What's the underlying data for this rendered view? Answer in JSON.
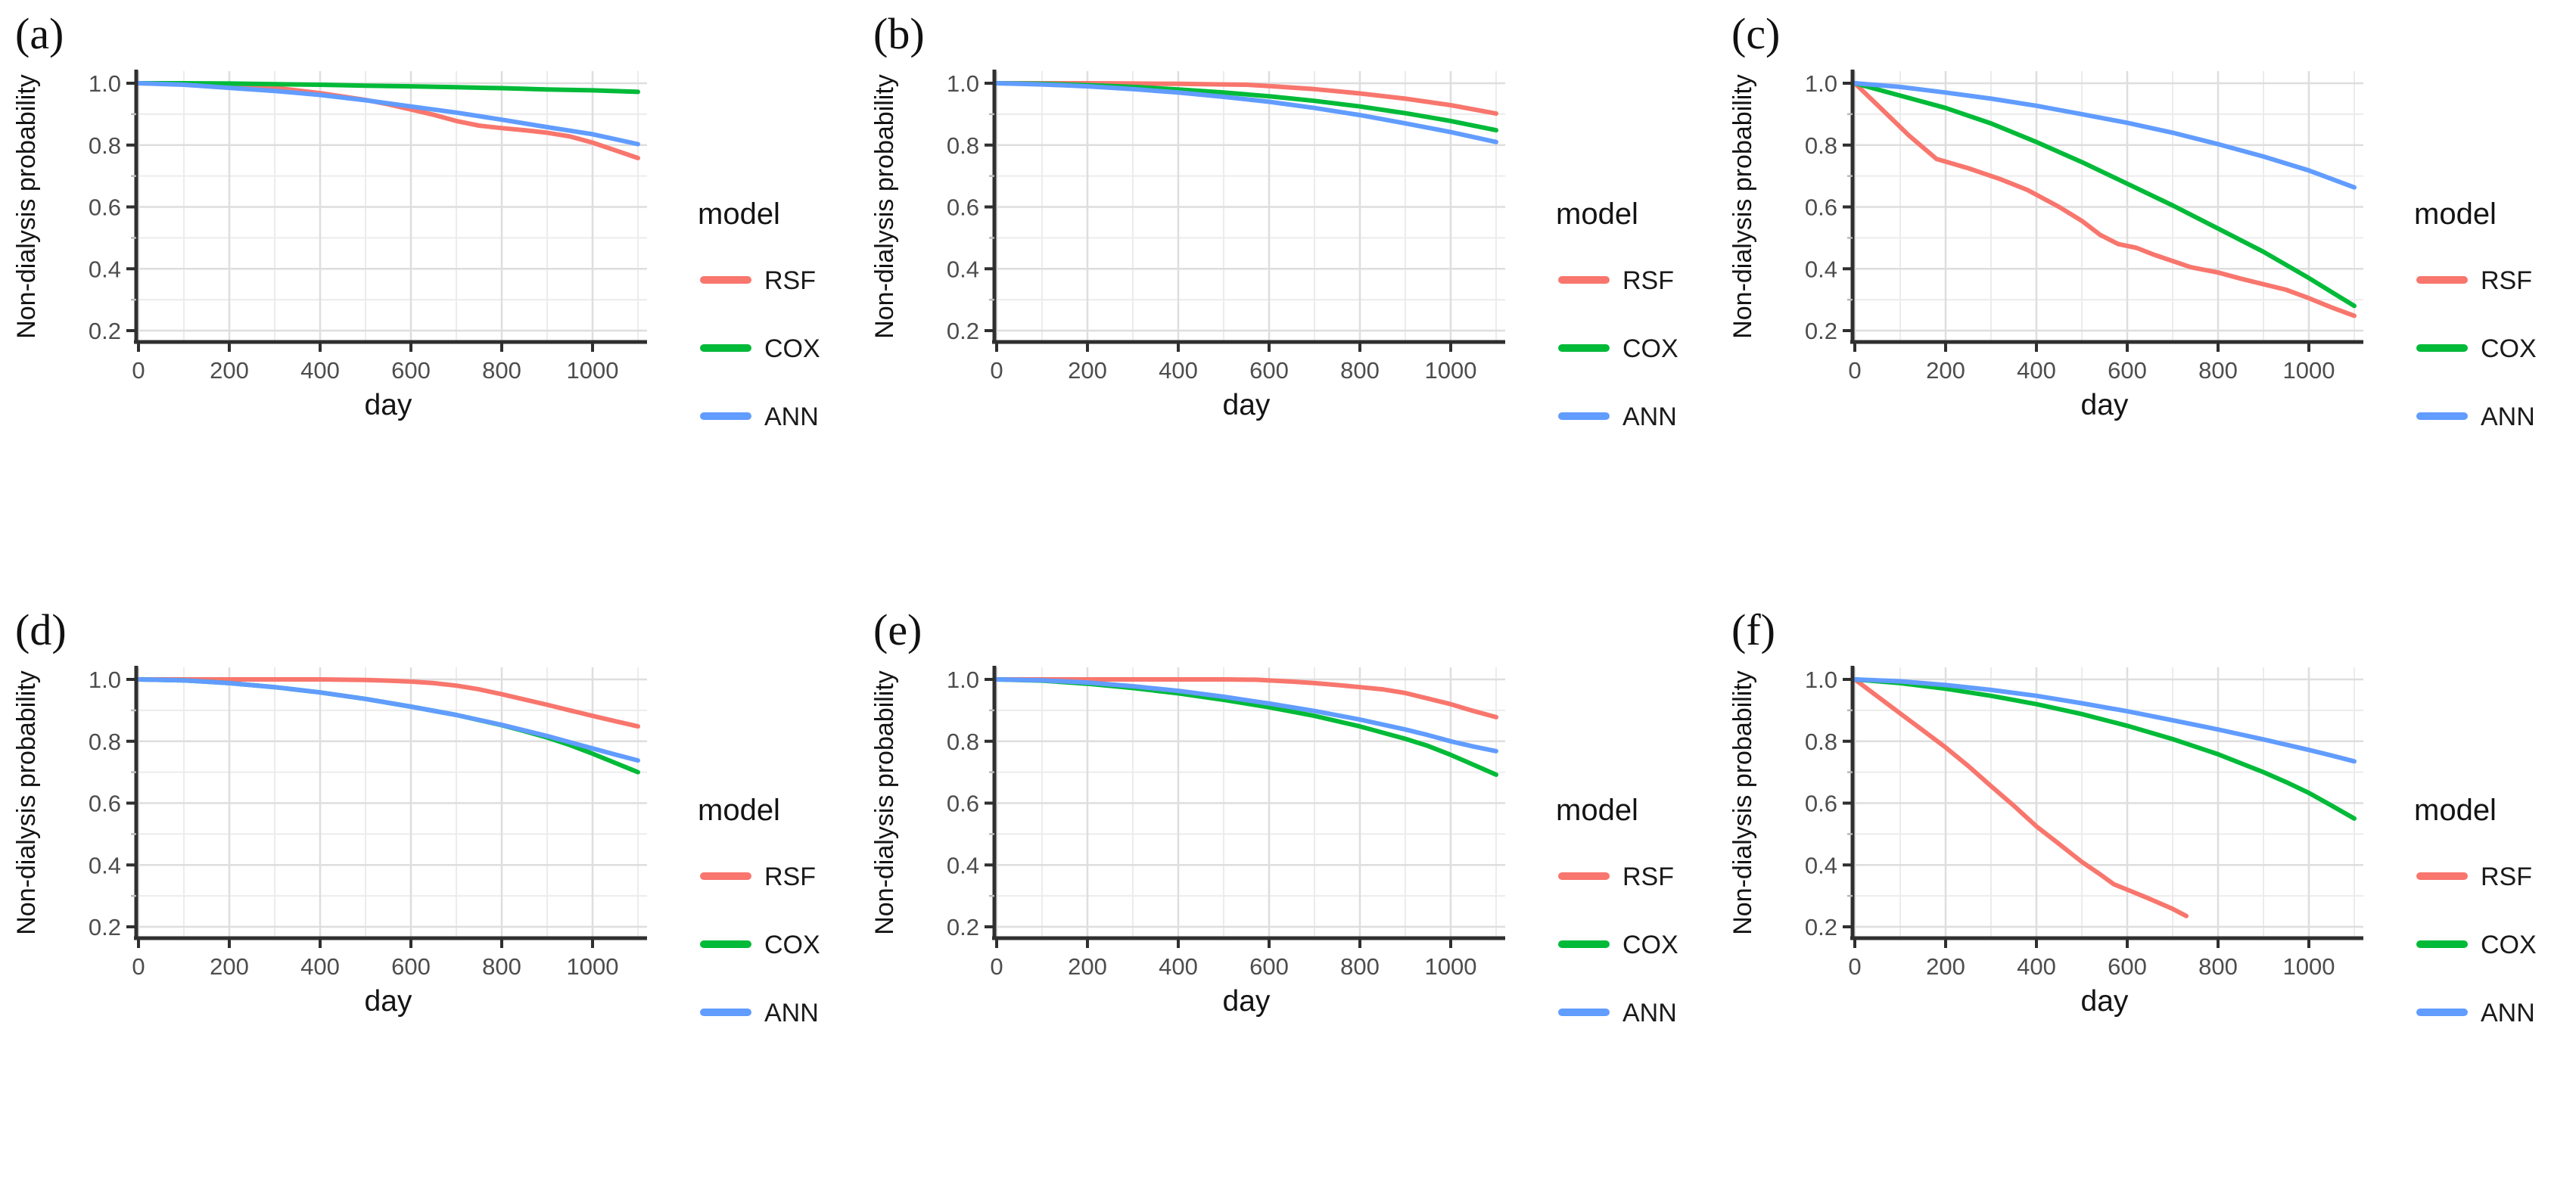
{
  "figure": {
    "ylabel": "Non-dialysis probability",
    "xlabel": "day",
    "legend_title": "model",
    "series_names": [
      "RSF",
      "COX",
      "ANN"
    ],
    "colors": {
      "RSF": "#F8766D",
      "COX": "#00BA38",
      "ANN": "#619CFF"
    },
    "style": {
      "grid_major": "#dedede",
      "grid_minor": "#ececec",
      "axis_color": "#2f2f2f",
      "tick_text_color": "#4d4d4d",
      "title_text_color": "#141414",
      "background": "#ffffff"
    }
  },
  "chart_data": [
    {
      "panel": "(a)",
      "type": "line",
      "xlabel": "day",
      "ylabel": "Non-dialysis probability",
      "xlim": [
        0,
        1100
      ],
      "ylim": [
        0.2,
        1.0
      ],
      "x_ticks": [
        0,
        200,
        400,
        600,
        800,
        1000
      ],
      "x_tick_labels": [
        "0",
        "200",
        "400",
        "600",
        "800",
        "1000"
      ],
      "x_minor": [
        100,
        300,
        500,
        700,
        900,
        1100
      ],
      "y_ticks": [
        0.2,
        0.4,
        0.6,
        0.8,
        1.0
      ],
      "y_tick_labels": [
        "0.2",
        "0.4",
        "0.6",
        "0.8",
        "1.0"
      ],
      "y_minor": [
        0.3,
        0.5,
        0.7,
        0.9
      ],
      "grid": true,
      "legend": {
        "title": "model",
        "position": "right"
      },
      "series": [
        {
          "name": "RSF",
          "color": "#F8766D",
          "x": [
            0,
            100,
            200,
            300,
            400,
            500,
            550,
            600,
            650,
            700,
            750,
            800,
            850,
            900,
            950,
            1000,
            1050,
            1100
          ],
          "y": [
            1.0,
            0.998,
            0.993,
            0.985,
            0.968,
            0.946,
            0.932,
            0.915,
            0.898,
            0.878,
            0.863,
            0.855,
            0.848,
            0.84,
            0.828,
            0.808,
            0.783,
            0.758
          ]
        },
        {
          "name": "COX",
          "color": "#00BA38",
          "x": [
            0,
            100,
            200,
            300,
            400,
            500,
            600,
            700,
            800,
            900,
            1000,
            1100
          ],
          "y": [
            1.0,
            1.0,
            0.999,
            0.997,
            0.995,
            0.992,
            0.99,
            0.987,
            0.984,
            0.98,
            0.977,
            0.972
          ]
        },
        {
          "name": "ANN",
          "color": "#619CFF",
          "x": [
            0,
            100,
            200,
            300,
            400,
            500,
            600,
            700,
            800,
            900,
            1000,
            1100
          ],
          "y": [
            1.0,
            0.995,
            0.985,
            0.975,
            0.962,
            0.945,
            0.925,
            0.905,
            0.882,
            0.858,
            0.835,
            0.803
          ]
        }
      ]
    },
    {
      "panel": "(b)",
      "type": "line",
      "xlabel": "day",
      "ylabel": "Non-dialysis probability",
      "xlim": [
        0,
        1100
      ],
      "ylim": [
        0.2,
        1.0
      ],
      "x_ticks": [
        0,
        200,
        400,
        600,
        800,
        1000
      ],
      "x_tick_labels": [
        "0",
        "200",
        "400",
        "600",
        "800",
        "1000"
      ],
      "x_minor": [
        100,
        300,
        500,
        700,
        900,
        1100
      ],
      "y_ticks": [
        0.2,
        0.4,
        0.6,
        0.8,
        1.0
      ],
      "y_tick_labels": [
        "0.2",
        "0.4",
        "0.6",
        "0.8",
        "1.0"
      ],
      "y_minor": [
        0.3,
        0.5,
        0.7,
        0.9
      ],
      "grid": true,
      "legend": {
        "title": "model",
        "position": "right"
      },
      "series": [
        {
          "name": "RSF",
          "color": "#F8766D",
          "x": [
            0,
            100,
            200,
            300,
            400,
            500,
            550,
            600,
            650,
            700,
            800,
            900,
            1000,
            1100
          ],
          "y": [
            1.0,
            1.0,
            1.0,
            0.999,
            0.998,
            0.996,
            0.995,
            0.991,
            0.986,
            0.981,
            0.967,
            0.95,
            0.929,
            0.902
          ]
        },
        {
          "name": "COX",
          "color": "#00BA38",
          "x": [
            0,
            100,
            200,
            300,
            400,
            500,
            600,
            700,
            800,
            900,
            1000,
            1100
          ],
          "y": [
            1.0,
            0.998,
            0.994,
            0.988,
            0.98,
            0.97,
            0.958,
            0.943,
            0.925,
            0.903,
            0.878,
            0.848
          ]
        },
        {
          "name": "ANN",
          "color": "#619CFF",
          "x": [
            0,
            100,
            200,
            300,
            400,
            500,
            600,
            700,
            800,
            900,
            1000,
            1100
          ],
          "y": [
            1.0,
            0.996,
            0.99,
            0.981,
            0.97,
            0.956,
            0.94,
            0.92,
            0.897,
            0.87,
            0.842,
            0.81
          ]
        }
      ]
    },
    {
      "panel": "(c)",
      "type": "line",
      "xlabel": "day",
      "ylabel": "Non-dialysis probability",
      "xlim": [
        0,
        1100
      ],
      "ylim": [
        0.2,
        1.0
      ],
      "x_ticks": [
        0,
        200,
        400,
        600,
        800,
        1000
      ],
      "x_tick_labels": [
        "0",
        "200",
        "400",
        "600",
        "800",
        "1000"
      ],
      "x_minor": [
        100,
        300,
        500,
        700,
        900,
        1100
      ],
      "y_ticks": [
        0.2,
        0.4,
        0.6,
        0.8,
        1.0
      ],
      "y_tick_labels": [
        "0.2",
        "0.4",
        "0.6",
        "0.8",
        "1.0"
      ],
      "y_minor": [
        0.3,
        0.5,
        0.7,
        0.9
      ],
      "grid": true,
      "legend": {
        "title": "model",
        "position": "right"
      },
      "series": [
        {
          "name": "RSF",
          "color": "#F8766D",
          "x": [
            0,
            60,
            120,
            180,
            250,
            320,
            380,
            450,
            500,
            540,
            580,
            620,
            660,
            700,
            740,
            800,
            850,
            900,
            950,
            1000,
            1050,
            1100
          ],
          "y": [
            1.0,
            0.915,
            0.83,
            0.755,
            0.725,
            0.69,
            0.655,
            0.6,
            0.555,
            0.51,
            0.48,
            0.468,
            0.445,
            0.425,
            0.405,
            0.388,
            0.368,
            0.35,
            0.332,
            0.305,
            0.275,
            0.248
          ]
        },
        {
          "name": "COX",
          "color": "#00BA38",
          "x": [
            0,
            100,
            200,
            300,
            400,
            500,
            600,
            700,
            800,
            900,
            1000,
            1050,
            1100
          ],
          "y": [
            1.0,
            0.96,
            0.92,
            0.87,
            0.81,
            0.745,
            0.675,
            0.605,
            0.53,
            0.455,
            0.37,
            0.325,
            0.28
          ]
        },
        {
          "name": "ANN",
          "color": "#619CFF",
          "x": [
            0,
            100,
            200,
            300,
            400,
            500,
            600,
            700,
            800,
            900,
            1000,
            1100
          ],
          "y": [
            1.0,
            0.988,
            0.97,
            0.95,
            0.927,
            0.9,
            0.872,
            0.84,
            0.803,
            0.763,
            0.718,
            0.663
          ]
        }
      ]
    },
    {
      "panel": "(d)",
      "type": "line",
      "xlabel": "day",
      "ylabel": "Non-dialysis probability",
      "xlim": [
        0,
        1100
      ],
      "ylim": [
        0.2,
        1.0
      ],
      "x_ticks": [
        0,
        200,
        400,
        600,
        800,
        1000
      ],
      "x_tick_labels": [
        "0",
        "200",
        "400",
        "600",
        "800",
        "1000"
      ],
      "x_minor": [
        100,
        300,
        500,
        700,
        900,
        1100
      ],
      "y_ticks": [
        0.2,
        0.4,
        0.6,
        0.8,
        1.0
      ],
      "y_tick_labels": [
        "0.2",
        "0.4",
        "0.6",
        "0.8",
        "1.0"
      ],
      "y_minor": [
        0.3,
        0.5,
        0.7,
        0.9
      ],
      "grid": true,
      "legend": {
        "title": "model",
        "position": "right"
      },
      "series": [
        {
          "name": "RSF",
          "color": "#F8766D",
          "x": [
            0,
            100,
            200,
            300,
            400,
            500,
            550,
            600,
            650,
            700,
            750,
            800,
            850,
            900,
            950,
            1000,
            1050,
            1100
          ],
          "y": [
            1.0,
            1.0,
            1.0,
            1.0,
            1.0,
            0.998,
            0.996,
            0.993,
            0.988,
            0.98,
            0.968,
            0.952,
            0.935,
            0.918,
            0.9,
            0.882,
            0.865,
            0.848
          ]
        },
        {
          "name": "COX",
          "color": "#00BA38",
          "x": [
            0,
            100,
            200,
            300,
            400,
            500,
            600,
            700,
            800,
            850,
            900,
            950,
            1000,
            1050,
            1100
          ],
          "y": [
            1.0,
            0.997,
            0.988,
            0.975,
            0.958,
            0.937,
            0.912,
            0.885,
            0.852,
            0.833,
            0.812,
            0.788,
            0.76,
            0.73,
            0.7
          ]
        },
        {
          "name": "ANN",
          "color": "#619CFF",
          "x": [
            0,
            100,
            200,
            300,
            400,
            500,
            600,
            700,
            800,
            850,
            900,
            950,
            1000,
            1050,
            1100
          ],
          "y": [
            1.0,
            0.997,
            0.988,
            0.975,
            0.958,
            0.937,
            0.912,
            0.885,
            0.853,
            0.835,
            0.817,
            0.797,
            0.777,
            0.757,
            0.738
          ]
        }
      ]
    },
    {
      "panel": "(e)",
      "type": "line",
      "xlabel": "day",
      "ylabel": "Non-dialysis probability",
      "xlim": [
        0,
        1100
      ],
      "ylim": [
        0.2,
        1.0
      ],
      "x_ticks": [
        0,
        200,
        400,
        600,
        800,
        1000
      ],
      "x_tick_labels": [
        "0",
        "200",
        "400",
        "600",
        "800",
        "1000"
      ],
      "x_minor": [
        100,
        300,
        500,
        700,
        900,
        1100
      ],
      "y_ticks": [
        0.2,
        0.4,
        0.6,
        0.8,
        1.0
      ],
      "y_tick_labels": [
        "0.2",
        "0.4",
        "0.6",
        "0.8",
        "1.0"
      ],
      "y_minor": [
        0.3,
        0.5,
        0.7,
        0.9
      ],
      "grid": true,
      "legend": {
        "title": "model",
        "position": "right"
      },
      "series": [
        {
          "name": "RSF",
          "color": "#F8766D",
          "x": [
            0,
            100,
            200,
            300,
            400,
            500,
            570,
            650,
            700,
            750,
            800,
            850,
            900,
            950,
            1000,
            1050,
            1100
          ],
          "y": [
            1.0,
            1.0,
            1.0,
            1.0,
            1.0,
            1.0,
            0.999,
            0.993,
            0.988,
            0.982,
            0.975,
            0.968,
            0.956,
            0.938,
            0.92,
            0.898,
            0.878
          ]
        },
        {
          "name": "COX",
          "color": "#00BA38",
          "x": [
            0,
            100,
            200,
            300,
            400,
            500,
            600,
            700,
            800,
            900,
            950,
            1000,
            1050,
            1100
          ],
          "y": [
            1.0,
            0.996,
            0.986,
            0.972,
            0.955,
            0.934,
            0.91,
            0.882,
            0.848,
            0.808,
            0.785,
            0.756,
            0.724,
            0.692
          ]
        },
        {
          "name": "ANN",
          "color": "#619CFF",
          "x": [
            0,
            100,
            200,
            300,
            400,
            500,
            600,
            700,
            800,
            900,
            950,
            1000,
            1050,
            1100
          ],
          "y": [
            1.0,
            0.997,
            0.99,
            0.978,
            0.963,
            0.944,
            0.922,
            0.898,
            0.87,
            0.838,
            0.82,
            0.8,
            0.783,
            0.768
          ]
        }
      ]
    },
    {
      "panel": "(f)",
      "type": "line",
      "xlabel": "day",
      "ylabel": "Non-dialysis probability",
      "xlim": [
        0,
        1100
      ],
      "ylim": [
        0.2,
        1.0
      ],
      "x_ticks": [
        0,
        200,
        400,
        600,
        800,
        1000
      ],
      "x_tick_labels": [
        "0",
        "200",
        "400",
        "600",
        "800",
        "1000"
      ],
      "x_minor": [
        100,
        300,
        500,
        700,
        900,
        1100
      ],
      "y_ticks": [
        0.2,
        0.4,
        0.6,
        0.8,
        1.0
      ],
      "y_tick_labels": [
        "0.2",
        "0.4",
        "0.6",
        "0.8",
        "1.0"
      ],
      "y_minor": [
        0.3,
        0.5,
        0.7,
        0.9
      ],
      "grid": true,
      "legend": {
        "title": "model",
        "position": "right"
      },
      "series": [
        {
          "name": "RSF",
          "color": "#F8766D",
          "x": [
            0,
            50,
            100,
            150,
            200,
            250,
            300,
            350,
            400,
            450,
            500,
            540,
            570,
            600,
            650,
            700,
            730
          ],
          "y": [
            1.0,
            0.945,
            0.89,
            0.835,
            0.78,
            0.72,
            0.655,
            0.592,
            0.525,
            0.468,
            0.41,
            0.37,
            0.338,
            0.32,
            0.29,
            0.258,
            0.235
          ]
        },
        {
          "name": "COX",
          "color": "#00BA38",
          "x": [
            0,
            100,
            200,
            300,
            400,
            500,
            600,
            700,
            800,
            900,
            950,
            1000,
            1050,
            1100
          ],
          "y": [
            1.0,
            0.988,
            0.97,
            0.947,
            0.92,
            0.888,
            0.85,
            0.807,
            0.758,
            0.7,
            0.668,
            0.633,
            0.592,
            0.55
          ]
        },
        {
          "name": "ANN",
          "color": "#619CFF",
          "x": [
            0,
            100,
            200,
            300,
            400,
            500,
            600,
            700,
            800,
            900,
            1000,
            1050,
            1100
          ],
          "y": [
            1.0,
            0.994,
            0.982,
            0.966,
            0.947,
            0.923,
            0.897,
            0.868,
            0.838,
            0.806,
            0.772,
            0.754,
            0.735
          ]
        }
      ]
    }
  ]
}
